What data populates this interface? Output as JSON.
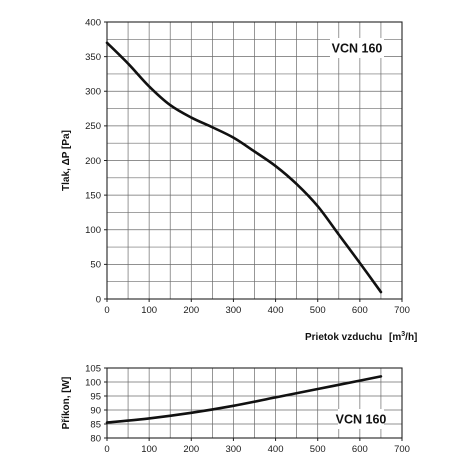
{
  "chart_data": [
    {
      "type": "line",
      "title": "VCN 160",
      "xlabel": "Prietok vzduchu",
      "xunit": "[m³/h]",
      "ylabel": "Tlak, ΔP [Pa]",
      "xlim": [
        0,
        700
      ],
      "ylim": [
        0,
        400
      ],
      "xticks": [
        0,
        100,
        200,
        300,
        400,
        500,
        600,
        700
      ],
      "yticks": [
        0,
        50,
        100,
        150,
        200,
        250,
        300,
        350,
        400
      ],
      "grid": true,
      "label_position": "top-right",
      "series": [
        {
          "x": [
            0,
            50,
            100,
            150,
            200,
            250,
            300,
            350,
            400,
            450,
            500,
            550,
            600,
            650
          ],
          "y": [
            370,
            340,
            307,
            280,
            262,
            248,
            233,
            213,
            192,
            166,
            134,
            93,
            52,
            10
          ]
        }
      ]
    },
    {
      "type": "line",
      "title": "VCN 160",
      "xlabel": "",
      "ylabel": "Příkon, [W]",
      "xlim": [
        0,
        700
      ],
      "ylim": [
        80,
        105
      ],
      "xticks": [
        0,
        100,
        200,
        300,
        400,
        500,
        600,
        700
      ],
      "yticks": [
        80,
        85,
        90,
        95,
        100,
        105
      ],
      "grid": true,
      "label_position": "bottom-right",
      "series": [
        {
          "x": [
            0,
            100,
            200,
            300,
            400,
            500,
            600,
            650
          ],
          "y": [
            85.5,
            87,
            89,
            91.5,
            94.5,
            97.5,
            100.5,
            102
          ]
        }
      ]
    }
  ]
}
